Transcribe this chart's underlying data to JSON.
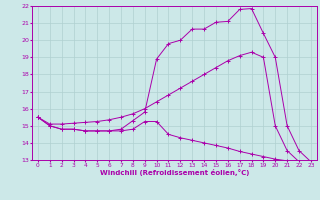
{
  "xlabel": "Windchill (Refroidissement éolien,°C)",
  "xlim": [
    -0.5,
    23.5
  ],
  "ylim": [
    13,
    22
  ],
  "xticks": [
    0,
    1,
    2,
    3,
    4,
    5,
    6,
    7,
    8,
    9,
    10,
    11,
    12,
    13,
    14,
    15,
    16,
    17,
    18,
    19,
    20,
    21,
    22,
    23
  ],
  "yticks": [
    13,
    14,
    15,
    16,
    17,
    18,
    19,
    20,
    21,
    22
  ],
  "bg_color": "#cce8e8",
  "grid_color": "#b0d0d0",
  "line_color": "#aa00aa",
  "line1_x": [
    0,
    1,
    2,
    3,
    4,
    5,
    6,
    7,
    8,
    9,
    10,
    11,
    12,
    13,
    14,
    15,
    16,
    17,
    18,
    19,
    20,
    21,
    22,
    23
  ],
  "line1_y": [
    15.5,
    15.0,
    14.8,
    14.8,
    14.7,
    14.7,
    14.7,
    14.7,
    14.8,
    15.25,
    15.25,
    14.5,
    14.3,
    14.15,
    14.0,
    13.85,
    13.7,
    13.5,
    13.35,
    13.2,
    13.05,
    12.95,
    12.9,
    12.9
  ],
  "line2_x": [
    0,
    1,
    2,
    3,
    4,
    5,
    6,
    7,
    8,
    9,
    10,
    11,
    12,
    13,
    14,
    15,
    16,
    17,
    18,
    19,
    20,
    21,
    22,
    23
  ],
  "line2_y": [
    15.5,
    15.0,
    14.8,
    14.8,
    14.7,
    14.7,
    14.7,
    14.8,
    15.3,
    15.8,
    18.9,
    19.8,
    20.0,
    20.65,
    20.65,
    21.05,
    21.1,
    21.8,
    21.85,
    20.4,
    19.0,
    15.0,
    13.55,
    12.9
  ],
  "line3_x": [
    0,
    1,
    2,
    3,
    4,
    5,
    6,
    7,
    8,
    9,
    10,
    11,
    12,
    13,
    14,
    15,
    16,
    17,
    18,
    19,
    20,
    21,
    22,
    23
  ],
  "line3_y": [
    15.5,
    15.1,
    15.1,
    15.15,
    15.2,
    15.25,
    15.35,
    15.5,
    15.7,
    16.0,
    16.4,
    16.8,
    17.2,
    17.6,
    18.0,
    18.4,
    18.8,
    19.1,
    19.3,
    19.0,
    15.0,
    13.55,
    12.9,
    12.9
  ]
}
